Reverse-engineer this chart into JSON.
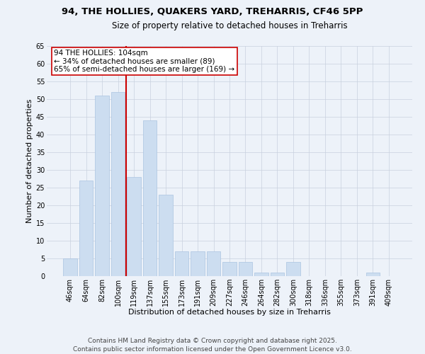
{
  "title_line1": "94, THE HOLLIES, QUAKERS YARD, TREHARRIS, CF46 5PP",
  "title_line2": "Size of property relative to detached houses in Treharris",
  "xlabel": "Distribution of detached houses by size in Treharris",
  "ylabel": "Number of detached properties",
  "categories": [
    "46sqm",
    "64sqm",
    "82sqm",
    "100sqm",
    "119sqm",
    "137sqm",
    "155sqm",
    "173sqm",
    "191sqm",
    "209sqm",
    "227sqm",
    "246sqm",
    "264sqm",
    "282sqm",
    "300sqm",
    "318sqm",
    "336sqm",
    "355sqm",
    "373sqm",
    "391sqm",
    "409sqm"
  ],
  "values": [
    5,
    27,
    51,
    52,
    28,
    44,
    23,
    7,
    7,
    7,
    4,
    4,
    1,
    1,
    4,
    0,
    0,
    0,
    0,
    1,
    0
  ],
  "bar_color": "#ccddf0",
  "bar_edge_color": "#aac4e0",
  "vline_x_index": 3.5,
  "vline_color": "#cc0000",
  "annotation_text": "94 THE HOLLIES: 104sqm\n← 34% of detached houses are smaller (89)\n65% of semi-detached houses are larger (169) →",
  "annotation_box_color": "#ffffff",
  "annotation_box_edge": "#cc0000",
  "ylim": [
    0,
    65
  ],
  "yticks": [
    0,
    5,
    10,
    15,
    20,
    25,
    30,
    35,
    40,
    45,
    50,
    55,
    60,
    65
  ],
  "footer_line1": "Contains HM Land Registry data © Crown copyright and database right 2025.",
  "footer_line2": "Contains public sector information licensed under the Open Government Licence v3.0.",
  "background_color": "#edf2f9",
  "grid_color": "#c8d0de",
  "title_fontsize": 9.5,
  "subtitle_fontsize": 8.5,
  "ylabel_fontsize": 8,
  "xlabel_fontsize": 8,
  "tick_fontsize": 7,
  "annotation_fontsize": 7.5,
  "footer_fontsize": 6.5
}
